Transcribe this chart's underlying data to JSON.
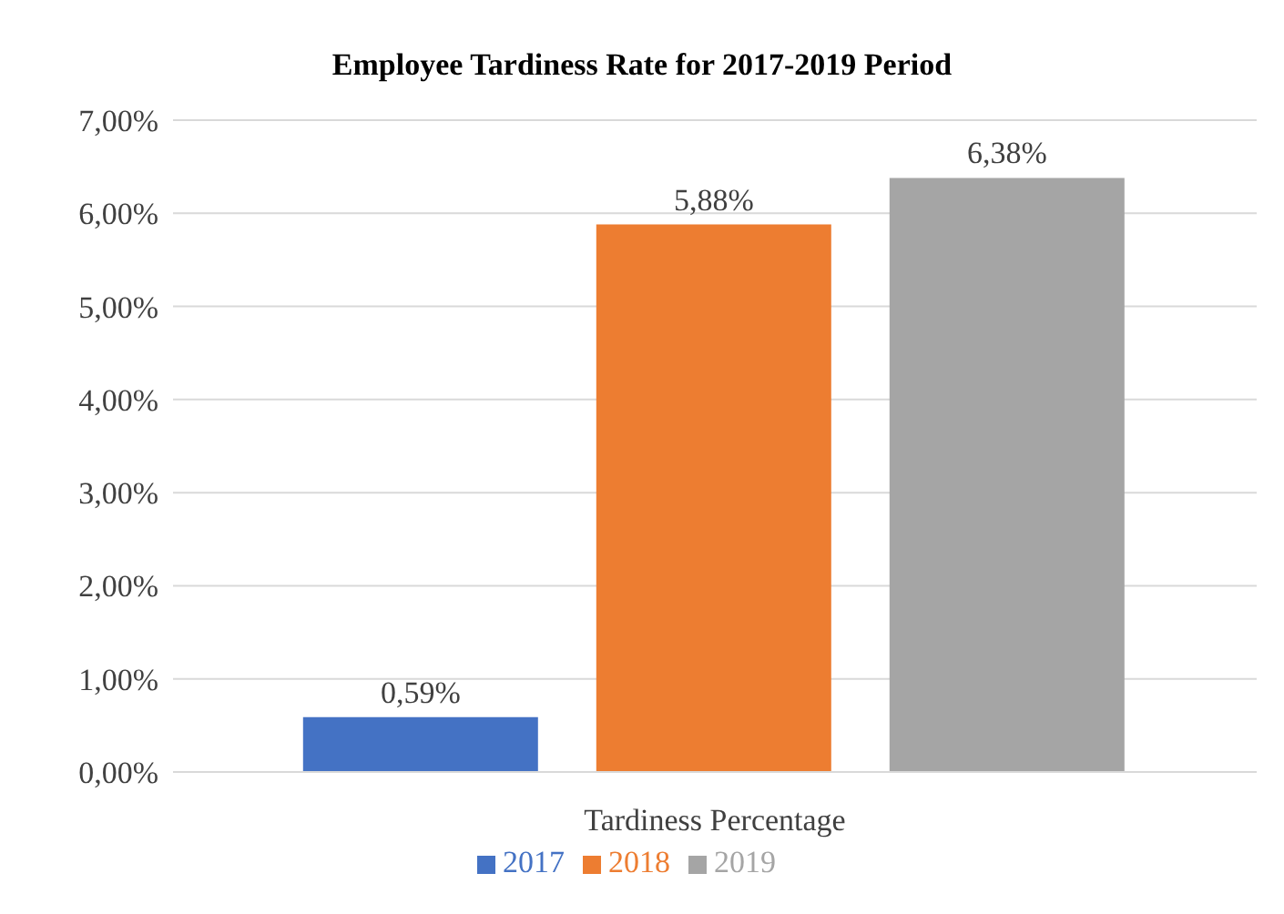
{
  "chart_data": {
    "type": "bar",
    "title": "Employee Tardiness  Rate for 2017-2019 Period",
    "categories": [
      "Tardiness Percentage"
    ],
    "series": [
      {
        "name": "2017",
        "color": "#4472c4",
        "values": [
          0.59
        ],
        "value_labels": [
          "0,59%"
        ]
      },
      {
        "name": "2018",
        "color": "#ed7d31",
        "values": [
          5.88
        ],
        "value_labels": [
          "5,88%"
        ]
      },
      {
        "name": "2019",
        "color": "#a5a5a5",
        "values": [
          6.38
        ],
        "value_labels": [
          "6,38%"
        ]
      }
    ],
    "ylim": [
      0,
      7
    ],
    "yticks": [
      {
        "value": 0,
        "label": "0,00%"
      },
      {
        "value": 1,
        "label": "1,00%"
      },
      {
        "value": 2,
        "label": "2,00%"
      },
      {
        "value": 3,
        "label": "3,00%"
      },
      {
        "value": 4,
        "label": "4,00%"
      },
      {
        "value": 5,
        "label": "5,00%"
      },
      {
        "value": 6,
        "label": "6,00%"
      },
      {
        "value": 7,
        "label": "7,00%"
      }
    ],
    "grid": "y",
    "legend": "bottom"
  }
}
